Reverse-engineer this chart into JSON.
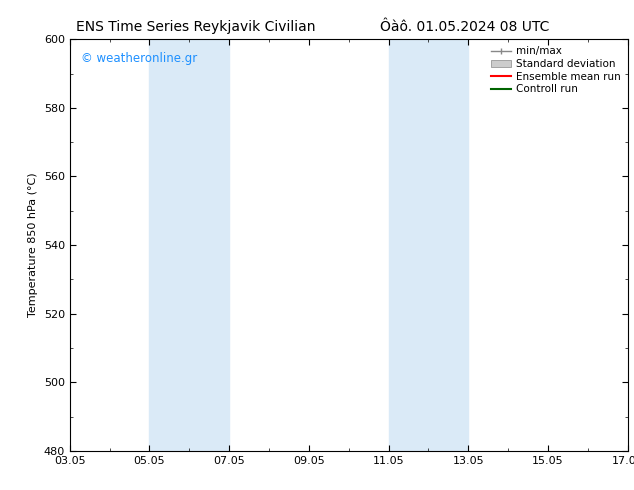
{
  "title_left": "ENS Time Series Reykjavik Civilian",
  "title_right": "Ôàô. 01.05.2024 08 UTC",
  "ylabel": "Temperature 850 hPa (°C)",
  "ylim": [
    480,
    600
  ],
  "yticks": [
    480,
    500,
    520,
    540,
    560,
    580,
    600
  ],
  "xlim": [
    0,
    14
  ],
  "xtick_labels": [
    "03.05",
    "05.05",
    "07.05",
    "09.05",
    "11.05",
    "13.05",
    "15.05",
    "17.05"
  ],
  "xtick_positions": [
    0,
    2,
    4,
    6,
    8,
    10,
    12,
    14
  ],
  "shaded_bands": [
    {
      "x_start": 2.0,
      "x_end": 4.0,
      "color": "#daeaf7"
    },
    {
      "x_start": 8.0,
      "x_end": 10.0,
      "color": "#daeaf7"
    }
  ],
  "watermark_text": "© weatheronline.gr",
  "watermark_color": "#1e90ff",
  "background_color": "#ffffff",
  "border_color": "#000000",
  "legend_fontsize": 7.5,
  "title_fontsize": 10,
  "ylabel_fontsize": 8,
  "tick_fontsize": 8
}
